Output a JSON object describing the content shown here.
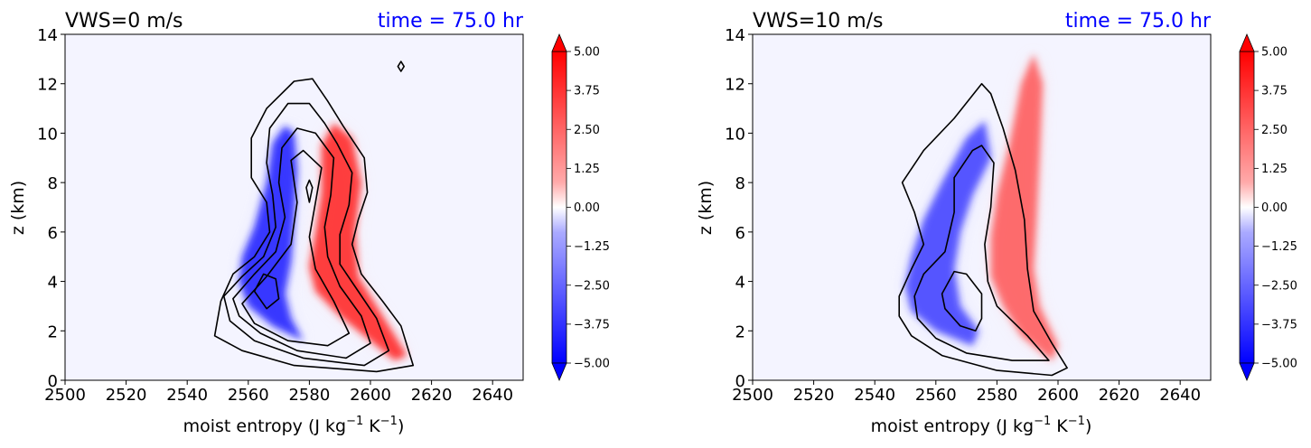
{
  "chart_data": [
    {
      "type": "heatmap",
      "title": "VWS=0 m/s",
      "time_label": "time = 75.0 hr",
      "xlabel": "moist entropy (J kg",
      "xlabel_exp1": "−1",
      "xlabel_mid": " K",
      "xlabel_exp2": "−1",
      "xlabel_end": ")",
      "ylabel": "z (km)",
      "xlim": [
        2500,
        2650
      ],
      "ylim": [
        0,
        14
      ],
      "xticks": [
        "2500",
        "2520",
        "2540",
        "2560",
        "2580",
        "2600",
        "2620",
        "2640"
      ],
      "yticks": [
        "0",
        "2",
        "4",
        "6",
        "8",
        "10",
        "12",
        "14"
      ],
      "colorbar": {
        "range": [
          -5,
          5
        ],
        "extend": "both",
        "ticks": [
          "5.00",
          "3.75",
          "2.50",
          "1.25",
          "0.00",
          "−1.25",
          "−2.50",
          "−3.75",
          "−5.00"
        ]
      },
      "blue_lobe": [
        [
          2578,
          1.6
        ],
        [
          2568,
          2.2
        ],
        [
          2560,
          3.0
        ],
        [
          2557,
          4.0
        ],
        [
          2558,
          5.0
        ],
        [
          2562,
          6.2
        ],
        [
          2566,
          8.0
        ],
        [
          2568,
          9.6
        ],
        [
          2572,
          10.3
        ],
        [
          2575,
          10.0
        ],
        [
          2576,
          8.5
        ],
        [
          2575,
          6.5
        ],
        [
          2574,
          4.8
        ],
        [
          2572,
          3.5
        ],
        [
          2574,
          2.5
        ]
      ],
      "red_lobe": [
        [
          2608,
          0.8
        ],
        [
          2600,
          1.6
        ],
        [
          2590,
          2.6
        ],
        [
          2582,
          3.6
        ],
        [
          2580,
          4.6
        ],
        [
          2582,
          6.0
        ],
        [
          2584,
          7.6
        ],
        [
          2584,
          9.5
        ],
        [
          2588,
          10.4
        ],
        [
          2594,
          9.8
        ],
        [
          2597,
          8.0
        ],
        [
          2595,
          6.0
        ],
        [
          2596,
          4.2
        ],
        [
          2604,
          2.6
        ],
        [
          2612,
          1.0
        ]
      ],
      "contours": [
        [
          [
            2549,
            1.8
          ],
          [
            2551,
            3.2
          ],
          [
            2555,
            4.3
          ],
          [
            2562,
            5.0
          ],
          [
            2567,
            6.0
          ],
          [
            2566,
            7.2
          ],
          [
            2561,
            8.2
          ],
          [
            2561,
            9.8
          ],
          [
            2566,
            11.0
          ],
          [
            2575,
            12.1
          ],
          [
            2581,
            12.2
          ],
          [
            2586,
            11.3
          ],
          [
            2591,
            10.3
          ],
          [
            2598,
            9.0
          ],
          [
            2599,
            7.6
          ],
          [
            2596,
            6.5
          ],
          [
            2594,
            5.5
          ],
          [
            2597,
            4.3
          ],
          [
            2604,
            3.2
          ],
          [
            2610,
            2.2
          ],
          [
            2614,
            0.6
          ],
          [
            2602,
            0.35
          ],
          [
            2575,
            0.6
          ],
          [
            2558,
            1.2
          ],
          [
            2549,
            1.8
          ]
        ],
        [
          [
            2552,
            3.4
          ],
          [
            2558,
            4.2
          ],
          [
            2565,
            5.0
          ],
          [
            2569,
            6.2
          ],
          [
            2568,
            7.5
          ],
          [
            2566,
            8.8
          ],
          [
            2567,
            10.2
          ],
          [
            2573,
            11.2
          ],
          [
            2580,
            11.2
          ],
          [
            2585,
            10.4
          ],
          [
            2589,
            9.6
          ],
          [
            2594,
            8.4
          ],
          [
            2593,
            7.1
          ],
          [
            2590,
            5.9
          ],
          [
            2590,
            4.7
          ],
          [
            2596,
            3.6
          ],
          [
            2602,
            2.5
          ],
          [
            2606,
            1.2
          ],
          [
            2598,
            0.6
          ],
          [
            2578,
            0.9
          ],
          [
            2562,
            1.6
          ],
          [
            2554,
            2.4
          ],
          [
            2552,
            3.4
          ]
        ],
        [
          [
            2555,
            3.3
          ],
          [
            2562,
            4.3
          ],
          [
            2569,
            5.2
          ],
          [
            2572,
            6.6
          ],
          [
            2570,
            8.0
          ],
          [
            2571,
            9.4
          ],
          [
            2576,
            10.2
          ],
          [
            2582,
            10.0
          ],
          [
            2588,
            9.0
          ],
          [
            2587,
            7.5
          ],
          [
            2585,
            6.2
          ],
          [
            2586,
            5.0
          ],
          [
            2590,
            3.8
          ],
          [
            2597,
            2.6
          ],
          [
            2600,
            1.5
          ],
          [
            2592,
            0.9
          ],
          [
            2576,
            1.2
          ],
          [
            2564,
            1.9
          ],
          [
            2557,
            2.6
          ],
          [
            2555,
            3.3
          ]
        ],
        [
          [
            2558,
            3.1
          ],
          [
            2566,
            4.2
          ],
          [
            2574,
            5.5
          ],
          [
            2576,
            7.2
          ],
          [
            2574,
            8.9
          ],
          [
            2578,
            9.3
          ],
          [
            2584,
            8.6
          ],
          [
            2582,
            7.2
          ],
          [
            2580,
            5.8
          ],
          [
            2582,
            4.5
          ],
          [
            2588,
            3.2
          ],
          [
            2593,
            1.9
          ],
          [
            2586,
            1.4
          ],
          [
            2573,
            1.6
          ],
          [
            2562,
            2.3
          ],
          [
            2558,
            3.1
          ]
        ],
        [
          [
            2562,
            3.6
          ],
          [
            2566,
            2.9
          ],
          [
            2570,
            3.3
          ],
          [
            2569,
            4.1
          ],
          [
            2565,
            4.3
          ],
          [
            2562,
            3.6
          ]
        ],
        [
          [
            2580,
            7.2
          ],
          [
            2579,
            7.8
          ],
          [
            2580,
            8.1
          ],
          [
            2581,
            7.8
          ],
          [
            2580,
            7.2
          ]
        ],
        [
          [
            2610,
            12.5
          ],
          [
            2609,
            12.7
          ],
          [
            2610,
            12.9
          ],
          [
            2611,
            12.7
          ],
          [
            2610,
            12.5
          ]
        ]
      ]
    },
    {
      "type": "heatmap",
      "title": "VWS=10 m/s",
      "time_label": "time = 75.0 hr",
      "xlabel": "moist entropy (J kg",
      "xlabel_exp1": "−1",
      "xlabel_mid": " K",
      "xlabel_exp2": "−1",
      "xlabel_end": ")",
      "ylabel": "z (km)",
      "xlim": [
        2500,
        2650
      ],
      "ylim": [
        0,
        14
      ],
      "xticks": [
        "2500",
        "2520",
        "2540",
        "2560",
        "2580",
        "2600",
        "2620",
        "2640"
      ],
      "yticks": [
        "0",
        "2",
        "4",
        "6",
        "8",
        "10",
        "12",
        "14"
      ],
      "colorbar": {
        "range": [
          -5,
          5
        ],
        "extend": "both",
        "ticks": [
          "5.00",
          "3.75",
          "2.50",
          "1.25",
          "0.00",
          "−1.25",
          "−2.50",
          "−3.75",
          "−5.00"
        ]
      },
      "blue_lobe": [
        [
          2572,
          1.4
        ],
        [
          2560,
          2.0
        ],
        [
          2552,
          2.8
        ],
        [
          2550,
          3.8
        ],
        [
          2552,
          5.0
        ],
        [
          2556,
          6.5
        ],
        [
          2562,
          8.0
        ],
        [
          2570,
          9.8
        ],
        [
          2576,
          10.5
        ],
        [
          2578,
          9.0
        ],
        [
          2572,
          7.5
        ],
        [
          2568,
          6.0
        ],
        [
          2566,
          4.5
        ],
        [
          2568,
          3.0
        ],
        [
          2574,
          2.0
        ]
      ],
      "red_lobe": [
        [
          2598,
          0.8
        ],
        [
          2588,
          1.8
        ],
        [
          2582,
          3.0
        ],
        [
          2578,
          4.2
        ],
        [
          2578,
          5.8
        ],
        [
          2580,
          7.5
        ],
        [
          2584,
          9.5
        ],
        [
          2588,
          12.0
        ],
        [
          2592,
          13.2
        ],
        [
          2595,
          12.0
        ],
        [
          2594,
          9.0
        ],
        [
          2593,
          6.5
        ],
        [
          2592,
          4.5
        ],
        [
          2594,
          3.0
        ],
        [
          2600,
          1.4
        ]
      ],
      "contours": [
        [
          [
            2548,
            3.4
          ],
          [
            2552,
            4.5
          ],
          [
            2556,
            5.5
          ],
          [
            2553,
            6.8
          ],
          [
            2549,
            8.0
          ],
          [
            2556,
            9.3
          ],
          [
            2566,
            10.6
          ],
          [
            2575,
            12.0
          ],
          [
            2578,
            11.6
          ],
          [
            2582,
            10.2
          ],
          [
            2586,
            8.5
          ],
          [
            2589,
            6.5
          ],
          [
            2590,
            4.5
          ],
          [
            2592,
            2.8
          ],
          [
            2598,
            1.5
          ],
          [
            2603,
            0.5
          ],
          [
            2598,
            0.2
          ],
          [
            2580,
            0.4
          ],
          [
            2562,
            1.0
          ],
          [
            2552,
            1.8
          ],
          [
            2548,
            2.6
          ],
          [
            2548,
            3.4
          ]
        ],
        [
          [
            2553,
            3.4
          ],
          [
            2556,
            4.3
          ],
          [
            2563,
            5.2
          ],
          [
            2566,
            6.8
          ],
          [
            2566,
            8.2
          ],
          [
            2572,
            9.3
          ],
          [
            2575,
            9.5
          ],
          [
            2579,
            8.8
          ],
          [
            2578,
            7.0
          ],
          [
            2576,
            5.5
          ],
          [
            2577,
            4.0
          ],
          [
            2580,
            3.0
          ],
          [
            2590,
            1.8
          ],
          [
            2597,
            0.8
          ],
          [
            2585,
            0.8
          ],
          [
            2570,
            1.1
          ],
          [
            2560,
            1.7
          ],
          [
            2554,
            2.5
          ],
          [
            2553,
            3.4
          ]
        ],
        [
          [
            2562,
            3.5
          ],
          [
            2566,
            4.4
          ],
          [
            2570,
            4.3
          ],
          [
            2575,
            3.5
          ],
          [
            2575,
            2.5
          ],
          [
            2573,
            2.0
          ],
          [
            2568,
            2.2
          ],
          [
            2563,
            2.9
          ],
          [
            2562,
            3.5
          ]
        ]
      ]
    }
  ]
}
